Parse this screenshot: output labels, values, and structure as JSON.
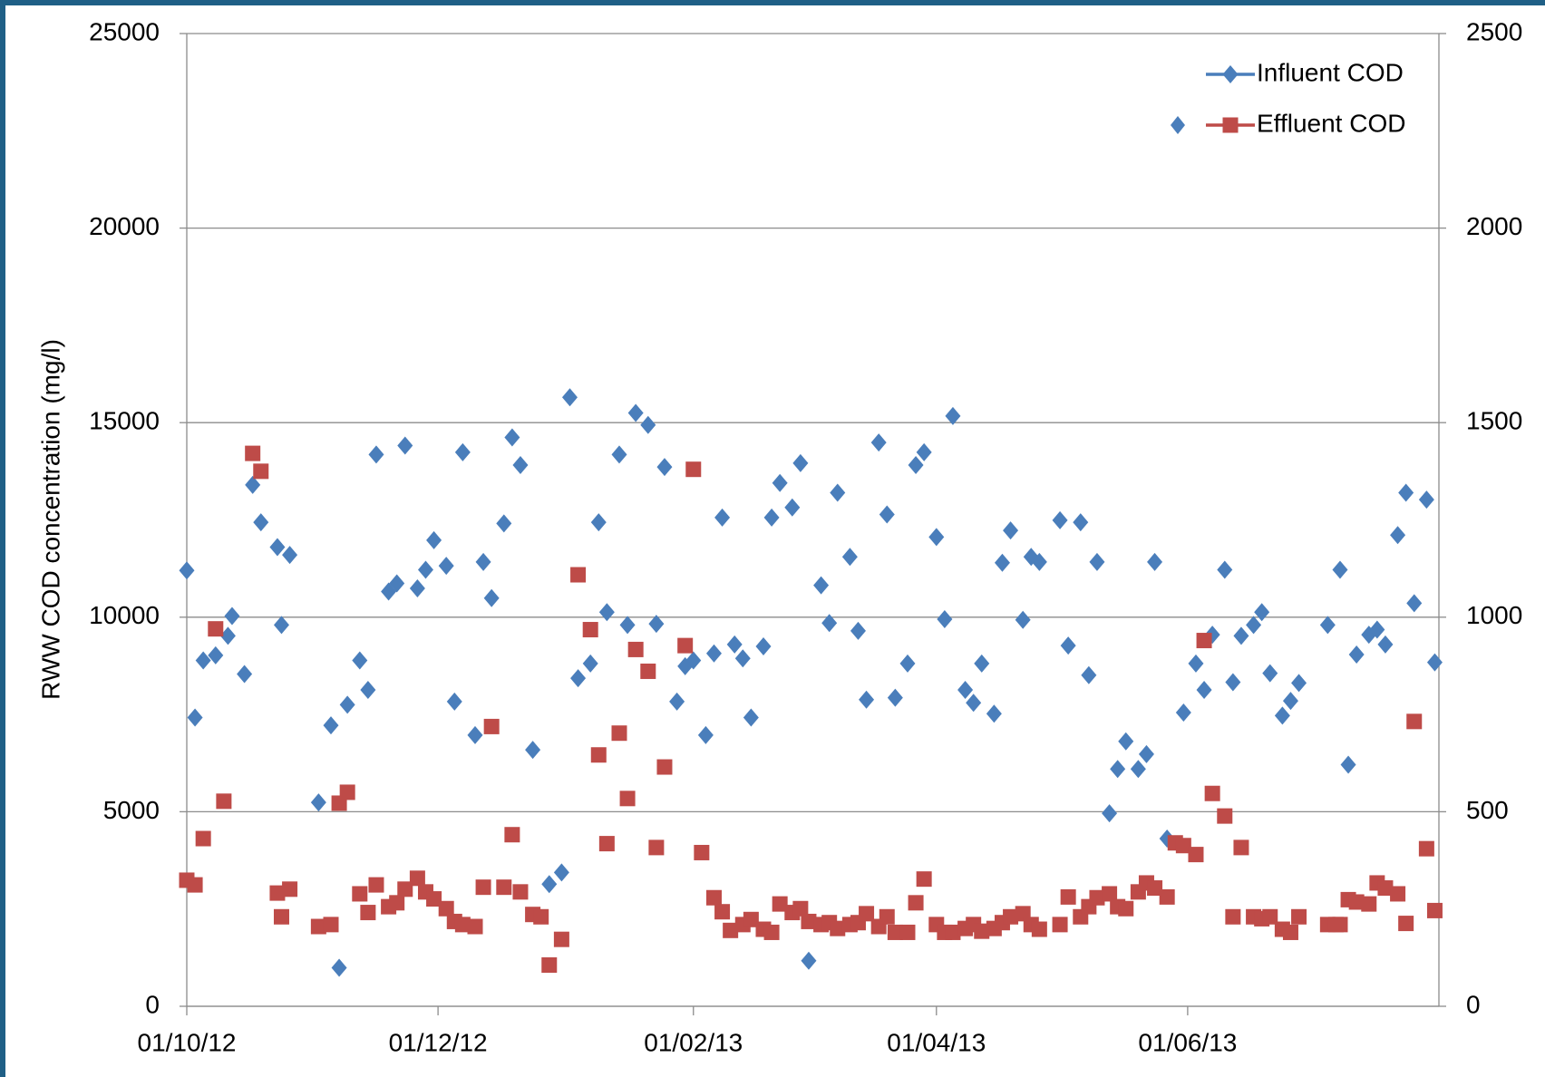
{
  "chart_data": {
    "type": "scatter",
    "y_label": "RWW COD concentration (mg/l)",
    "xlim": [
      "2012-10-01",
      "2013-08-01"
    ],
    "xticks": [
      {
        "value": "2012-10-01",
        "label": "01/10/12"
      },
      {
        "value": "2012-12-01",
        "label": "01/12/12"
      },
      {
        "value": "2013-02-01",
        "label": "01/02/13"
      },
      {
        "value": "2013-04-01",
        "label": "01/04/13"
      },
      {
        "value": "2013-06-01",
        "label": "01/06/13"
      }
    ],
    "ylim": [
      0,
      25000
    ],
    "yticks": [
      0,
      5000,
      10000,
      15000,
      20000,
      25000
    ],
    "y2lim": [
      0,
      2500
    ],
    "y2ticks": [
      0,
      500,
      1000,
      1500,
      2000,
      2500
    ],
    "grid": true,
    "legend": "upper right",
    "series": [
      {
        "name": "Influent COD",
        "color": "#4a7ebb",
        "marker": "diamond",
        "axis": "y",
        "x": [
          "2012-10-01",
          "2012-10-03",
          "2012-10-05",
          "2012-10-08",
          "2012-10-11",
          "2012-10-12",
          "2012-10-15",
          "2012-10-17",
          "2012-10-19",
          "2012-10-23",
          "2012-10-24",
          "2012-10-26",
          "2012-11-02",
          "2012-11-05",
          "2012-11-07",
          "2012-11-09",
          "2012-11-12",
          "2012-11-14",
          "2012-11-16",
          "2012-11-19",
          "2012-11-21",
          "2012-11-23",
          "2012-11-26",
          "2012-11-28",
          "2012-11-30",
          "2012-12-03",
          "2012-12-05",
          "2012-12-07",
          "2012-12-10",
          "2012-12-12",
          "2012-12-14",
          "2012-12-17",
          "2012-12-19",
          "2012-12-21",
          "2012-12-24",
          "2012-12-28",
          "2012-12-31",
          "2013-01-02",
          "2013-01-04",
          "2013-01-07",
          "2013-01-09",
          "2013-01-11",
          "2013-01-14",
          "2013-01-16",
          "2013-01-18",
          "2013-01-21",
          "2013-01-23",
          "2013-01-25",
          "2013-01-28",
          "2013-01-30",
          "2013-02-01",
          "2013-02-04",
          "2013-02-06",
          "2013-02-08",
          "2013-02-11",
          "2013-02-13",
          "2013-02-15",
          "2013-02-18",
          "2013-02-20",
          "2013-02-22",
          "2013-02-25",
          "2013-02-27",
          "2013-03-01",
          "2013-03-04",
          "2013-03-06",
          "2013-03-08",
          "2013-03-11",
          "2013-03-13",
          "2013-03-15",
          "2013-03-18",
          "2013-03-20",
          "2013-03-22",
          "2013-03-25",
          "2013-03-27",
          "2013-03-29",
          "2013-04-01",
          "2013-04-03",
          "2013-04-05",
          "2013-04-08",
          "2013-04-10",
          "2013-04-12",
          "2013-04-15",
          "2013-04-17",
          "2013-04-19",
          "2013-04-22",
          "2013-04-24",
          "2013-04-26",
          "2013-05-01",
          "2013-05-03",
          "2013-05-06",
          "2013-05-08",
          "2013-05-10",
          "2013-05-13",
          "2013-05-15",
          "2013-05-17",
          "2013-05-20",
          "2013-05-22",
          "2013-05-24",
          "2013-05-27",
          "2013-05-31",
          "2013-06-03",
          "2013-06-05",
          "2013-06-07",
          "2013-06-10",
          "2013-06-12",
          "2013-06-14",
          "2013-06-17",
          "2013-06-19",
          "2013-06-21",
          "2013-06-24",
          "2013-06-26",
          "2013-06-28",
          "2013-07-05",
          "2013-07-08",
          "2013-07-10",
          "2013-07-12",
          "2013-07-15",
          "2013-07-17",
          "2013-07-19",
          "2013-07-22",
          "2013-07-24",
          "2013-07-26",
          "2013-07-29",
          "2013-07-31"
        ],
        "values": [
          11200,
          7420,
          8890,
          9020,
          9520,
          10030,
          8540,
          13400,
          12440,
          11800,
          9800,
          11600,
          5240,
          7220,
          990,
          7750,
          8890,
          8130,
          14180,
          10660,
          10870,
          14410,
          10740,
          11220,
          11980,
          11320,
          7830,
          14240,
          6970,
          11420,
          10490,
          12410,
          14620,
          13910,
          6590,
          3140,
          3440,
          15650,
          8430,
          8810,
          12440,
          10130,
          14180,
          9800,
          15250,
          14940,
          9830,
          13860,
          7830,
          8740,
          8890,
          6970,
          9070,
          12560,
          9300,
          8940,
          7420,
          9250,
          12560,
          13450,
          12820,
          13960,
          1170,
          10820,
          9850,
          13200,
          11550,
          9650,
          7880,
          14490,
          12640,
          7930,
          8810,
          13910,
          14240,
          12060,
          9950,
          15170,
          8130,
          7800,
          8810,
          7520,
          11400,
          12230,
          9930,
          11550,
          11420,
          12490,
          9270,
          12440,
          8510,
          11420,
          4960,
          6100,
          6810,
          6100,
          6480,
          11420,
          4310,
          7550,
          8810,
          8130,
          9550,
          11220,
          8330,
          9520,
          9800,
          10130,
          8560,
          7470,
          7850,
          8310,
          9800,
          11220,
          6210,
          9040,
          9550,
          9680,
          9300,
          12110,
          13200,
          10360,
          13020,
          8840
        ]
      },
      {
        "name": "Effluent COD",
        "color": "#be4b48",
        "marker": "square",
        "axis": "y2",
        "x": [
          "2012-10-01",
          "2012-10-03",
          "2012-10-05",
          "2012-10-08",
          "2012-10-10",
          "2012-10-17",
          "2012-10-19",
          "2012-10-23",
          "2012-10-24",
          "2012-10-26",
          "2012-11-02",
          "2012-11-05",
          "2012-11-07",
          "2012-11-09",
          "2012-11-12",
          "2012-11-14",
          "2012-11-16",
          "2012-11-19",
          "2012-11-21",
          "2012-11-23",
          "2012-11-26",
          "2012-11-28",
          "2012-11-30",
          "2012-12-03",
          "2012-12-05",
          "2012-12-07",
          "2012-12-10",
          "2012-12-12",
          "2012-12-14",
          "2012-12-17",
          "2012-12-19",
          "2012-12-21",
          "2012-12-24",
          "2012-12-26",
          "2012-12-28",
          "2012-12-31",
          "2013-01-04",
          "2013-01-07",
          "2013-01-09",
          "2013-01-11",
          "2013-01-14",
          "2013-01-16",
          "2013-01-18",
          "2013-01-21",
          "2013-01-23",
          "2013-01-25",
          "2013-01-30",
          "2013-02-01",
          "2013-02-03",
          "2013-02-06",
          "2013-02-08",
          "2013-02-10",
          "2013-02-13",
          "2013-02-15",
          "2013-02-18",
          "2013-02-20",
          "2013-02-22",
          "2013-02-25",
          "2013-02-27",
          "2013-03-01",
          "2013-03-04",
          "2013-03-06",
          "2013-03-08",
          "2013-03-11",
          "2013-03-13",
          "2013-03-15",
          "2013-03-18",
          "2013-03-20",
          "2013-03-22",
          "2013-03-25",
          "2013-03-27",
          "2013-03-29",
          "2013-04-01",
          "2013-04-03",
          "2013-04-05",
          "2013-04-08",
          "2013-04-10",
          "2013-04-12",
          "2013-04-15",
          "2013-04-17",
          "2013-04-19",
          "2013-04-22",
          "2013-04-24",
          "2013-04-26",
          "2013-05-01",
          "2013-05-03",
          "2013-05-06",
          "2013-05-08",
          "2013-05-10",
          "2013-05-13",
          "2013-05-15",
          "2013-05-17",
          "2013-05-20",
          "2013-05-22",
          "2013-05-24",
          "2013-05-27",
          "2013-05-29",
          "2013-05-31",
          "2013-06-03",
          "2013-06-05",
          "2013-06-07",
          "2013-06-10",
          "2013-06-12",
          "2013-06-14",
          "2013-06-17",
          "2013-06-19",
          "2013-06-21",
          "2013-06-24",
          "2013-06-26",
          "2013-06-28",
          "2013-07-05",
          "2013-07-07",
          "2013-07-08",
          "2013-07-10",
          "2013-07-12",
          "2013-07-15",
          "2013-07-17",
          "2013-07-19",
          "2013-07-22",
          "2013-07-24",
          "2013-07-26",
          "2013-07-29",
          "2013-07-31"
        ],
        "values": [
          324,
          312,
          431,
          970,
          527,
          1421,
          1375,
          291,
          230,
          301,
          205,
          210,
          522,
          550,
          289,
          241,
          312,
          256,
          266,
          301,
          329,
          294,
          276,
          251,
          218,
          210,
          205,
          306,
          719,
          306,
          441,
          294,
          236,
          230,
          106,
          172,
          1109,
          968,
          646,
          418,
          702,
          534,
          917,
          861,
          408,
          615,
          927,
          1380,
          395,
          279,
          243,
          195,
          210,
          223,
          198,
          190,
          263,
          241,
          251,
          218,
          210,
          215,
          200,
          210,
          215,
          238,
          205,
          230,
          190,
          190,
          266,
          327,
          210,
          190,
          190,
          200,
          210,
          193,
          200,
          215,
          230,
          238,
          210,
          198,
          210,
          281,
          230,
          256,
          279,
          289,
          256,
          251,
          294,
          317,
          304,
          281,
          420,
          413,
          390,
          940,
          547,
          489,
          230,
          408,
          230,
          225,
          230,
          198,
          190,
          230,
          210,
          210,
          210,
          274,
          268,
          263,
          317,
          304,
          289,
          213,
          732,
          405,
          246
        ]
      }
    ]
  }
}
